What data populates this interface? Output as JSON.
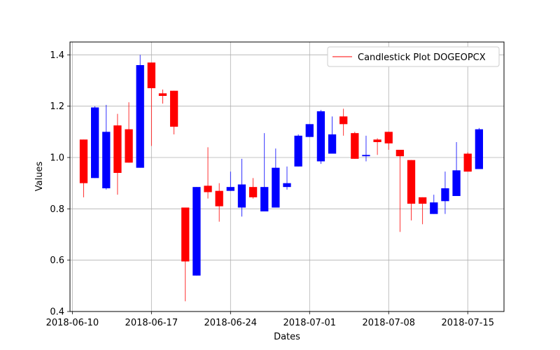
{
  "chart_data": {
    "type": "candlestick",
    "title": "",
    "xlabel": "Dates",
    "ylabel": "Values",
    "ylim": [
      0.4,
      1.45
    ],
    "xlim": [
      "2018-06-09T19:00",
      "2018-07-18T05:00"
    ],
    "yticks": [
      0.4,
      0.6,
      0.8,
      1.0,
      1.2,
      1.4
    ],
    "ytick_labels": [
      "0.4",
      "0.6",
      "0.8",
      "1.0",
      "1.2",
      "1.4"
    ],
    "xticks": [
      "2018-06-10",
      "2018-06-17",
      "2018-06-24",
      "2018-07-01",
      "2018-07-08",
      "2018-07-15"
    ],
    "xtick_labels": [
      "2018-06-10",
      "2018-06-17",
      "2018-06-24",
      "2018-07-01",
      "2018-07-08",
      "2018-07-15"
    ],
    "grid": true,
    "legend": {
      "entries": [
        "Candlestick Plot DOGEOPCX"
      ],
      "placement": "top-right"
    },
    "colors": {
      "up": "#0000ff",
      "down": "#ff0000"
    },
    "series": [
      {
        "name": "Candlestick Plot DOGEOPCX",
        "points": [
          {
            "date": "2018-06-11",
            "open": 1.07,
            "high": 1.07,
            "low": 0.845,
            "close": 0.9
          },
          {
            "date": "2018-06-12",
            "open": 0.92,
            "high": 1.2,
            "low": 0.92,
            "close": 1.195
          },
          {
            "date": "2018-06-13",
            "open": 0.88,
            "high": 1.205,
            "low": 0.875,
            "close": 1.1
          },
          {
            "date": "2018-06-14",
            "open": 1.125,
            "high": 1.17,
            "low": 0.855,
            "close": 0.94
          },
          {
            "date": "2018-06-15",
            "open": 1.11,
            "high": 1.215,
            "low": 0.98,
            "close": 0.98
          },
          {
            "date": "2018-06-16",
            "open": 0.96,
            "high": 1.4,
            "low": 0.96,
            "close": 1.36
          },
          {
            "date": "2018-06-17",
            "open": 1.37,
            "high": 1.37,
            "low": 1.045,
            "close": 1.27
          },
          {
            "date": "2018-06-18",
            "open": 1.25,
            "high": 1.265,
            "low": 1.21,
            "close": 1.24
          },
          {
            "date": "2018-06-19",
            "open": 1.26,
            "high": 1.26,
            "low": 1.09,
            "close": 1.12
          },
          {
            "date": "2018-06-20",
            "open": 0.805,
            "high": 0.805,
            "low": 0.44,
            "close": 0.595
          },
          {
            "date": "2018-06-21",
            "open": 0.54,
            "high": 0.885,
            "low": 0.54,
            "close": 0.885
          },
          {
            "date": "2018-06-22",
            "open": 0.89,
            "high": 1.04,
            "low": 0.84,
            "close": 0.865
          },
          {
            "date": "2018-06-23",
            "open": 0.87,
            "high": 0.9,
            "low": 0.75,
            "close": 0.81
          },
          {
            "date": "2018-06-24",
            "open": 0.87,
            "high": 0.945,
            "low": 0.87,
            "close": 0.885
          },
          {
            "date": "2018-06-25",
            "open": 0.805,
            "high": 0.995,
            "low": 0.77,
            "close": 0.895
          },
          {
            "date": "2018-06-26",
            "open": 0.885,
            "high": 0.92,
            "low": 0.84,
            "close": 0.845
          },
          {
            "date": "2018-06-27",
            "open": 0.79,
            "high": 1.095,
            "low": 0.79,
            "close": 0.885
          },
          {
            "date": "2018-06-28",
            "open": 0.805,
            "high": 1.035,
            "low": 0.805,
            "close": 0.96
          },
          {
            "date": "2018-06-29",
            "open": 0.885,
            "high": 0.965,
            "low": 0.875,
            "close": 0.9
          },
          {
            "date": "2018-06-30",
            "open": 0.965,
            "high": 1.09,
            "low": 0.965,
            "close": 1.085
          },
          {
            "date": "2018-07-01",
            "open": 1.08,
            "high": 1.13,
            "low": 1.08,
            "close": 1.13
          },
          {
            "date": "2018-07-02",
            "open": 0.985,
            "high": 1.185,
            "low": 0.975,
            "close": 1.18
          },
          {
            "date": "2018-07-03",
            "open": 1.015,
            "high": 1.16,
            "low": 1.015,
            "close": 1.09
          },
          {
            "date": "2018-07-04",
            "open": 1.16,
            "high": 1.19,
            "low": 1.085,
            "close": 1.13
          },
          {
            "date": "2018-07-05",
            "open": 1.095,
            "high": 1.1,
            "low": 0.995,
            "close": 0.995
          },
          {
            "date": "2018-07-06",
            "open": 1.005,
            "high": 1.085,
            "low": 0.985,
            "close": 1.01
          },
          {
            "date": "2018-07-07",
            "open": 1.07,
            "high": 1.075,
            "low": 1.01,
            "close": 1.06
          },
          {
            "date": "2018-07-08",
            "open": 1.1,
            "high": 1.1,
            "low": 1.03,
            "close": 1.055
          },
          {
            "date": "2018-07-09",
            "open": 1.03,
            "high": 1.03,
            "low": 0.71,
            "close": 1.005
          },
          {
            "date": "2018-07-10",
            "open": 0.99,
            "high": 0.99,
            "low": 0.755,
            "close": 0.82
          },
          {
            "date": "2018-07-11",
            "open": 0.845,
            "high": 0.845,
            "low": 0.74,
            "close": 0.82
          },
          {
            "date": "2018-07-12",
            "open": 0.78,
            "high": 0.855,
            "low": 0.78,
            "close": 0.825
          },
          {
            "date": "2018-07-13",
            "open": 0.83,
            "high": 0.945,
            "low": 0.78,
            "close": 0.88
          },
          {
            "date": "2018-07-14",
            "open": 0.85,
            "high": 1.06,
            "low": 0.85,
            "close": 0.95
          },
          {
            "date": "2018-07-15",
            "open": 1.015,
            "high": 1.02,
            "low": 0.945,
            "close": 0.945
          },
          {
            "date": "2018-07-16",
            "open": 0.955,
            "high": 1.115,
            "low": 0.955,
            "close": 1.11
          }
        ]
      }
    ]
  }
}
